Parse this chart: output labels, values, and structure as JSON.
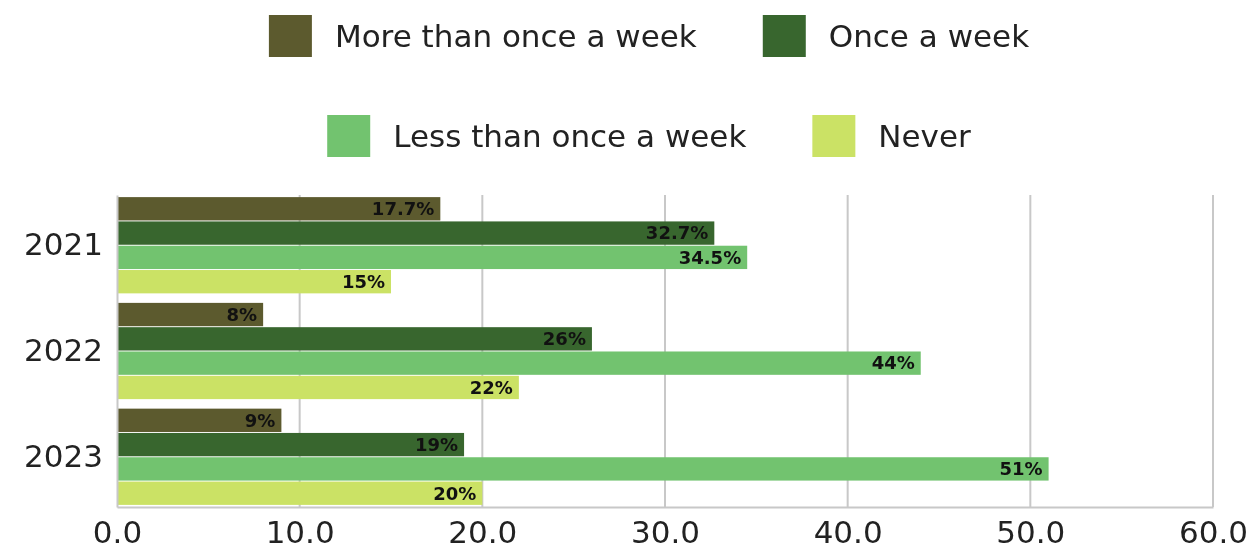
{
  "chart_data": {
    "type": "bar",
    "orientation": "horizontal",
    "categories": [
      "2021",
      "2022",
      "2023"
    ],
    "series": [
      {
        "name": "More than once a week",
        "color": "#5c5a2e",
        "values": [
          17.7,
          8,
          9
        ],
        "value_labels": [
          "17.7%",
          "8%",
          "9%"
        ]
      },
      {
        "name": "Once a week",
        "color": "#38662e",
        "values": [
          32.7,
          26,
          19
        ],
        "value_labels": [
          "32.7%",
          "26%",
          "19%"
        ]
      },
      {
        "name": "Less than once a week",
        "color": "#72c36f",
        "values": [
          34.5,
          44,
          51
        ],
        "value_labels": [
          "34.5%",
          "44%",
          "51%"
        ]
      },
      {
        "name": "Never",
        "color": "#cbe265",
        "values": [
          15,
          22,
          20
        ],
        "value_labels": [
          "15%",
          "22%",
          "20%"
        ]
      }
    ],
    "xlim": [
      0,
      60
    ],
    "xticks": [
      {
        "value": 0,
        "label": "0.0"
      },
      {
        "value": 10,
        "label": "10.0"
      },
      {
        "value": 20,
        "label": "20.0"
      },
      {
        "value": 30,
        "label": "30.0"
      },
      {
        "value": 40,
        "label": "40.0"
      },
      {
        "value": 50,
        "label": "50.0"
      },
      {
        "value": 60,
        "label": "60.0"
      }
    ],
    "grid": "x",
    "legend": "top"
  }
}
